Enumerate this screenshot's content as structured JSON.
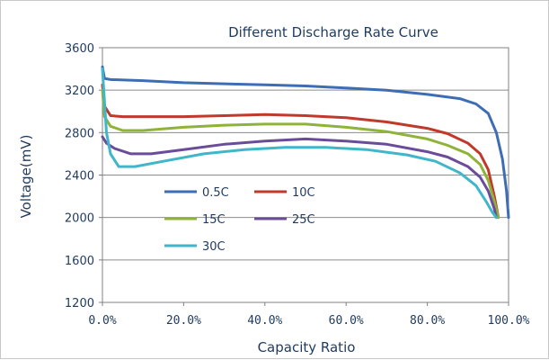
{
  "chart_data": {
    "type": "line",
    "title": "Different Discharge Rate Curve",
    "xlabel": "Capacity Ratio",
    "ylabel": "Voltage(mV)",
    "xlim": [
      0,
      100
    ],
    "ylim": [
      1200,
      3600
    ],
    "x_ticks": [
      "0.0%",
      "20.0%",
      "40.0%",
      "60.0%",
      "80.0%",
      "100.0%"
    ],
    "y_ticks": [
      "1200",
      "1600",
      "2000",
      "2400",
      "2800",
      "3200",
      "3600"
    ],
    "grid": true,
    "legend_position": "inside-lower-left",
    "series": [
      {
        "name": "0.5C",
        "color": "#3d6db5",
        "points": [
          [
            0,
            3420
          ],
          [
            0.5,
            3310
          ],
          [
            2,
            3300
          ],
          [
            10,
            3290
          ],
          [
            20,
            3270
          ],
          [
            30,
            3260
          ],
          [
            40,
            3250
          ],
          [
            50,
            3240
          ],
          [
            60,
            3220
          ],
          [
            70,
            3200
          ],
          [
            80,
            3160
          ],
          [
            88,
            3120
          ],
          [
            92,
            3070
          ],
          [
            95,
            2980
          ],
          [
            97,
            2800
          ],
          [
            98.5,
            2550
          ],
          [
            99.5,
            2250
          ],
          [
            100,
            2000
          ]
        ]
      },
      {
        "name": "10C",
        "color": "#c0392b",
        "points": [
          [
            0,
            3250
          ],
          [
            0.5,
            3050
          ],
          [
            2,
            2960
          ],
          [
            5,
            2950
          ],
          [
            10,
            2950
          ],
          [
            20,
            2950
          ],
          [
            30,
            2960
          ],
          [
            40,
            2970
          ],
          [
            50,
            2960
          ],
          [
            60,
            2940
          ],
          [
            70,
            2900
          ],
          [
            80,
            2840
          ],
          [
            85,
            2790
          ],
          [
            90,
            2700
          ],
          [
            93,
            2600
          ],
          [
            95,
            2450
          ],
          [
            96.5,
            2200
          ],
          [
            97.5,
            2000
          ]
        ]
      },
      {
        "name": "15C",
        "color": "#8fb339",
        "points": [
          [
            0,
            3200
          ],
          [
            0.5,
            2950
          ],
          [
            2,
            2860
          ],
          [
            5,
            2820
          ],
          [
            10,
            2820
          ],
          [
            20,
            2850
          ],
          [
            30,
            2870
          ],
          [
            40,
            2880
          ],
          [
            50,
            2880
          ],
          [
            60,
            2850
          ],
          [
            70,
            2810
          ],
          [
            80,
            2740
          ],
          [
            85,
            2680
          ],
          [
            90,
            2600
          ],
          [
            93,
            2500
          ],
          [
            95,
            2350
          ],
          [
            96.5,
            2150
          ],
          [
            97.5,
            2000
          ]
        ]
      },
      {
        "name": "25C",
        "color": "#6b4c9a",
        "points": [
          [
            0,
            2760
          ],
          [
            1,
            2700
          ],
          [
            3,
            2650
          ],
          [
            7,
            2600
          ],
          [
            12,
            2600
          ],
          [
            20,
            2640
          ],
          [
            30,
            2690
          ],
          [
            40,
            2720
          ],
          [
            50,
            2740
          ],
          [
            60,
            2720
          ],
          [
            70,
            2690
          ],
          [
            80,
            2620
          ],
          [
            85,
            2570
          ],
          [
            90,
            2480
          ],
          [
            93,
            2380
          ],
          [
            95,
            2250
          ],
          [
            96.5,
            2080
          ],
          [
            97,
            2000
          ]
        ]
      },
      {
        "name": "30C",
        "color": "#3fb6c9",
        "points": [
          [
            0,
            3400
          ],
          [
            1,
            2800
          ],
          [
            2,
            2600
          ],
          [
            4,
            2480
          ],
          [
            8,
            2480
          ],
          [
            15,
            2530
          ],
          [
            25,
            2600
          ],
          [
            35,
            2640
          ],
          [
            45,
            2660
          ],
          [
            55,
            2660
          ],
          [
            65,
            2640
          ],
          [
            75,
            2590
          ],
          [
            82,
            2530
          ],
          [
            88,
            2420
          ],
          [
            92,
            2300
          ],
          [
            94.5,
            2150
          ],
          [
            96,
            2050
          ],
          [
            97,
            2000
          ]
        ]
      }
    ]
  }
}
